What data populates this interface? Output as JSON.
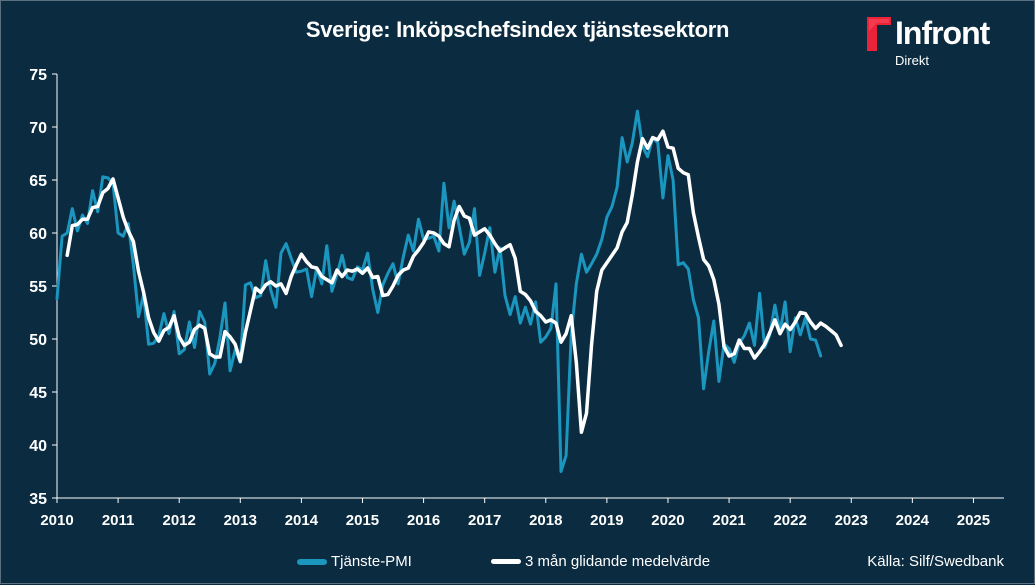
{
  "header": {
    "title": "Sverige: Inköpschefsindex tjänstesektorn"
  },
  "logo": {
    "brand": "Infront",
    "sub": "Direkt",
    "mark_color": "#e8233a"
  },
  "legend": {
    "series1": "Tjänste-PMI",
    "series2": "3 mån glidande medelvärde"
  },
  "source": "Källa:  Silf/Swedbank",
  "colors": {
    "background": "#0b2b40",
    "pmi": "#1a96bf",
    "avg": "#ffffff"
  },
  "chart_data": {
    "type": "line",
    "title": "Sverige: Inköpschefsindex tjänstesektorn",
    "xlabel": "",
    "ylabel": "",
    "ylim": [
      35,
      75
    ],
    "xlim": [
      2010,
      2025.5
    ],
    "yticks": [
      35,
      40,
      45,
      50,
      55,
      60,
      65,
      70,
      75
    ],
    "xticks": [
      "2010",
      "2011",
      "2012",
      "2013",
      "2014",
      "2015",
      "2016",
      "2017",
      "2018",
      "2019",
      "2020",
      "2021",
      "2022",
      "2023",
      "2024",
      "2025"
    ],
    "grid": false,
    "legend_position": "bottom",
    "series": [
      {
        "name": "Tjänste-PMI",
        "color": "#1a96bf",
        "start": "2010-01",
        "values": [
          53.8,
          59.7,
          60.0,
          62.3,
          60.2,
          61.7,
          60.9,
          64.0,
          62.0,
          65.3,
          65.2,
          64.7,
          60.0,
          59.7,
          60.9,
          57.0,
          52.1,
          54.2,
          49.5,
          49.6,
          50.3,
          52.4,
          50.5,
          52.6,
          48.6,
          49.0,
          51.6,
          49.2,
          52.6,
          51.6,
          46.7,
          47.7,
          50.1,
          53.4,
          47.0,
          49.0,
          47.8,
          55.1,
          55.3,
          53.9,
          54.1,
          57.4,
          54.6,
          53.0,
          58.1,
          59.0,
          57.6,
          56.3,
          56.4,
          56.6,
          54.0,
          56.7,
          55.2,
          58.8,
          54.5,
          56.1,
          57.9,
          55.8,
          55.6,
          56.8,
          56.5,
          58.1,
          54.7,
          52.5,
          55.1,
          56.2,
          57.1,
          55.2,
          57.7,
          59.8,
          58.3,
          61.3,
          59.4,
          59.5,
          59.7,
          58.3,
          64.7,
          60.5,
          63.0,
          60.6,
          58.0,
          59.1,
          62.3,
          56.0,
          58.1,
          60.5,
          56.3,
          58.6,
          54.1,
          52.3,
          54.0,
          51.5,
          53.0,
          51.4,
          53.5,
          49.7,
          50.2,
          51.0,
          55.2,
          37.5,
          39.0,
          50.4,
          55.2,
          58.0,
          56.3,
          57.1,
          58.0,
          59.4,
          61.5,
          62.5,
          64.3,
          69.0,
          66.7,
          68.5,
          71.5,
          68.2,
          67.2,
          69.0,
          68.5,
          63.3,
          67.3,
          65.0,
          57.0,
          57.2,
          56.6,
          53.7,
          52.0,
          45.3,
          48.8,
          51.7,
          46.0,
          49.5,
          49.1,
          47.8,
          49.6,
          50.3,
          51.5,
          49.4,
          54.3,
          49.2,
          50.4,
          53.2,
          50.6,
          53.5,
          48.8,
          52.0,
          50.4,
          52.0,
          50.0,
          49.9,
          48.4
        ]
      },
      {
        "name": "3 mån glidande medelvärde",
        "color": "#ffffff",
        "start": "2010-03",
        "values": [
          57.9,
          60.7,
          60.8,
          61.3,
          61.3,
          62.4,
          62.5,
          63.8,
          64.2,
          65.1,
          63.3,
          61.5,
          60.2,
          59.2,
          56.4,
          54.4,
          52.0,
          50.6,
          49.8,
          50.8,
          51.1,
          52.2,
          50.2,
          49.4,
          49.7,
          50.9,
          51.3,
          51.0,
          48.6,
          48.3,
          48.3,
          50.7,
          50.2,
          49.5,
          47.9,
          50.6,
          52.7,
          54.8,
          54.4,
          55.1,
          55.4,
          55.0,
          55.2,
          54.3,
          55.9,
          57.0,
          58.0,
          57.3,
          56.8,
          56.7,
          55.9,
          55.6,
          55.3,
          56.5,
          55.9,
          56.5,
          56.4,
          56.6,
          56.2,
          56.7,
          55.8,
          55.9,
          54.1,
          54.2,
          55.0,
          56.0,
          56.5,
          56.7,
          57.8,
          58.4,
          59.1,
          60.1,
          60.0,
          59.7,
          59.0,
          58.7,
          61.2,
          62.5,
          61.6,
          61.4,
          59.8,
          60.1,
          60.4,
          59.8,
          59.0,
          58.3,
          58.6,
          58.9,
          57.6,
          54.5,
          54.2,
          53.6,
          52.6,
          52.2,
          51.6,
          51.8,
          51.5,
          49.7,
          50.5,
          52.2,
          47.8,
          41.2,
          43.0,
          49.5,
          54.5,
          56.5,
          57.2,
          57.9,
          58.6,
          60.1,
          61.0,
          63.6,
          66.7,
          68.9,
          68.0,
          69.0,
          68.8,
          69.6,
          68.1,
          68.0,
          66.1,
          65.7,
          65.5,
          61.9,
          59.6,
          57.5,
          56.9,
          55.6,
          53.3,
          49.3,
          48.4,
          48.6,
          49.9,
          49.1,
          49.1,
          48.2,
          48.8,
          49.5,
          50.6,
          51.8,
          50.5,
          51.4,
          50.9,
          51.6,
          52.5,
          52.4,
          51.6,
          51.0,
          51.5,
          51.2,
          50.8,
          50.4,
          49.4
        ]
      }
    ]
  }
}
